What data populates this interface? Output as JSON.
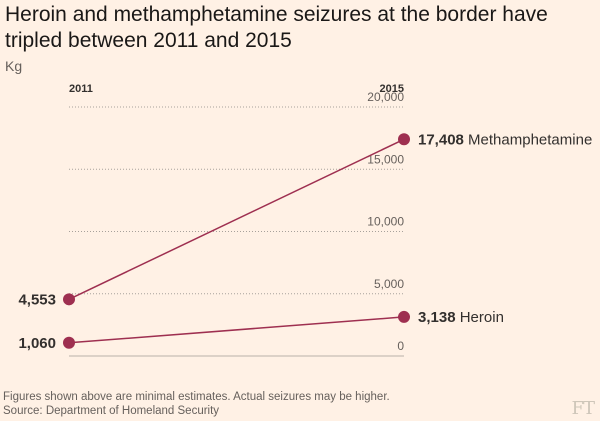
{
  "title": "Heroin and methamphetamine seizures at the border have tripled between 2011 and 2015",
  "unit": "Kg",
  "footnote": "Figures shown above are minimal estimates. Actual seizures may be higher.",
  "source": "Source: Department of Homeland Security",
  "logo": "FT",
  "chart_data": {
    "type": "line",
    "x": [
      "2011",
      "2015"
    ],
    "ylim": [
      0,
      20000
    ],
    "yticks": [
      0,
      5000,
      10000,
      15000,
      20000
    ],
    "ytick_labels": [
      "0",
      "5,000",
      "10,000",
      "15,000",
      "20,000"
    ],
    "grid": true,
    "series": [
      {
        "name": "Methamphetamine",
        "values": [
          4553,
          17408
        ],
        "labels": [
          "4,553",
          "17,408"
        ],
        "color": "#9e2f50"
      },
      {
        "name": "Heroin",
        "values": [
          1060,
          3138
        ],
        "labels": [
          "1,060",
          "3,138"
        ],
        "color": "#9e2f50"
      }
    ]
  }
}
